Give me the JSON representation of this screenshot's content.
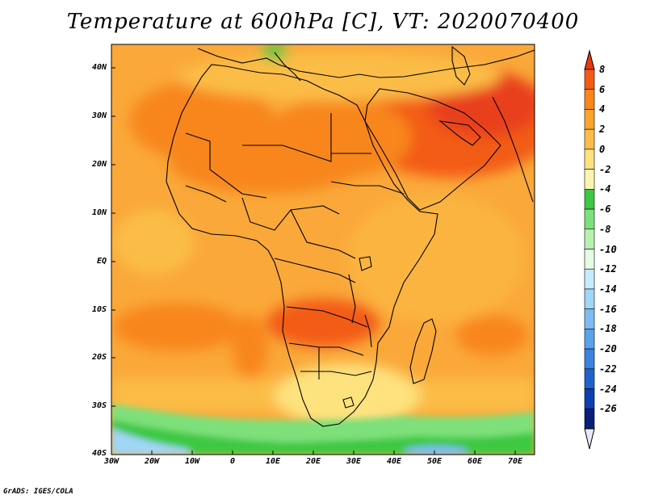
{
  "title": "Temperature at 600hPa [C], VT: 2020070400",
  "credit": "GrADS: IGES/COLA",
  "lat_ticks": [
    "40N",
    "30N",
    "20N",
    "10N",
    "EQ",
    "10S",
    "20S",
    "30S",
    "40S"
  ],
  "lon_ticks": [
    "30W",
    "20W",
    "10W",
    "0",
    "10E",
    "20E",
    "30E",
    "40E",
    "50E",
    "60E",
    "70E"
  ],
  "colorbar": {
    "labels": [
      "8",
      "6",
      "4",
      "2",
      "0",
      "-2",
      "-4",
      "-6",
      "-8",
      "-10",
      "-12",
      "-14",
      "-16",
      "-18",
      "-20",
      "-22",
      "-24",
      "-26"
    ],
    "colors": [
      "#e83a10",
      "#f35c14",
      "#f8861a",
      "#faa42c",
      "#fbbd47",
      "#fde27e",
      "#fdf3b0",
      "#3cc842",
      "#7ee07a",
      "#b8f0b0",
      "#e6fbe6",
      "#c6ecfb",
      "#a0d6f6",
      "#7cbcf2",
      "#5aa2ec",
      "#3a84e0",
      "#1f62cc",
      "#0d3fb0",
      "#0a1f7a",
      "#e8e8f8"
    ]
  },
  "legend_colors": {
    "ocean_base": "#faa83a",
    "land_base": "#fbb43f",
    "hot_core": "#f35c14",
    "very_hot": "#e8401a",
    "cool_south": "#fde27e",
    "cold_south": "#3cc842",
    "coastline": "#000000"
  }
}
